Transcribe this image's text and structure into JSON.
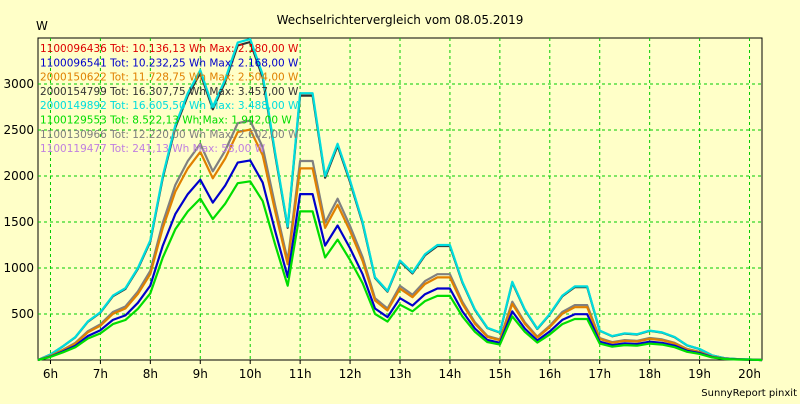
{
  "chart_data": {
    "type": "line",
    "title": "Wechselrichtervergleich vom 08.05.2019",
    "ylabel": "W",
    "xlabel": "",
    "footer": "SunnyReport pinxit",
    "xlim": [
      5.75,
      20.25
    ],
    "ylim": [
      0,
      3500
    ],
    "yticks": [
      500,
      1000,
      1500,
      2000,
      2500,
      3000
    ],
    "xticks": [
      6,
      7,
      8,
      9,
      10,
      11,
      12,
      13,
      14,
      15,
      16,
      17,
      18,
      19,
      20
    ],
    "xtick_labels": [
      "6h",
      "7h",
      "8h",
      "9h",
      "10h",
      "11h",
      "12h",
      "13h",
      "14h",
      "15h",
      "16h",
      "17h",
      "18h",
      "19h",
      "20h"
    ],
    "grid": true,
    "legend_position": "top-left",
    "x": [
      5.75,
      6,
      6.25,
      6.5,
      6.75,
      7,
      7.25,
      7.5,
      7.75,
      8,
      8.25,
      8.5,
      8.75,
      9,
      9.25,
      9.5,
      9.75,
      10,
      10.25,
      10.5,
      10.75,
      11,
      11.25,
      11.5,
      11.75,
      12,
      12.25,
      12.5,
      12.75,
      13,
      13.25,
      13.5,
      13.75,
      14,
      14.25,
      14.5,
      14.75,
      15,
      15.25,
      15.5,
      15.75,
      16,
      16.25,
      16.5,
      16.75,
      17,
      17.25,
      17.5,
      17.75,
      18,
      18.25,
      18.5,
      18.75,
      19,
      19.25,
      19.5,
      19.75,
      20,
      20.25
    ],
    "series": [
      {
        "name": "1100096436",
        "tot": "Tot: 10.136,13 Wh",
        "max": "Max: 2.180,00 W",
        "color": "#DD0000",
        "draw": false,
        "scale": 0.622
      },
      {
        "name": "1100096541",
        "tot": "Tot: 10.232,25 Wh",
        "max": "Max: 2.168,00 W",
        "color": "#0000CC",
        "draw": true,
        "scale": 0.622
      },
      {
        "name": "2000150622",
        "tot": "Tot: 11.728,75 Wh",
        "max": "Max: 2.504,00 W",
        "color": "#E08000",
        "draw": true,
        "scale": 0.718
      },
      {
        "name": "2000154799",
        "tot": "Tot: 16.307,75 Wh",
        "max": "Max: 3.457,00 W",
        "color": "#333333",
        "draw": true,
        "scale": 0.991
      },
      {
        "name": "2000149892",
        "tot": "Tot: 16.605,50 Wh",
        "max": "Max: 3.488,00 W",
        "color": "#00DDDD",
        "draw": true,
        "scale": 1.0
      },
      {
        "name": "1100129553",
        "tot": "Tot: 8.522,13 Wh",
        "max": "Max: 1.942,00 W",
        "color": "#00DD00",
        "draw": true,
        "scale": 0.557
      },
      {
        "name": "1100130966",
        "tot": "Tot: 12.220,00 Wh",
        "max": "Max: 2.602,00 W",
        "color": "#808080",
        "draw": true,
        "scale": 0.746
      },
      {
        "name": "1100119477",
        "tot": "Tot: 241,13 Wh",
        "max": "Max: 58,00 W",
        "color": "#C080E0",
        "draw": false,
        "scale": 0.017
      }
    ],
    "profile": [
      0,
      60,
      150,
      250,
      420,
      520,
      700,
      780,
      1000,
      1300,
      2000,
      2550,
      2900,
      3150,
      2750,
      3050,
      3450,
      3488,
      3100,
      2250,
      1450,
      2900,
      2900,
      2000,
      2350,
      1950,
      1500,
      900,
      750,
      1080,
      950,
      1150,
      1250,
      1250,
      850,
      550,
      350,
      300,
      850,
      550,
      340,
      500,
      700,
      800,
      800,
      320,
      260,
      290,
      280,
      320,
      300,
      250,
      160,
      120,
      50,
      20,
      10,
      5,
      0
    ]
  }
}
